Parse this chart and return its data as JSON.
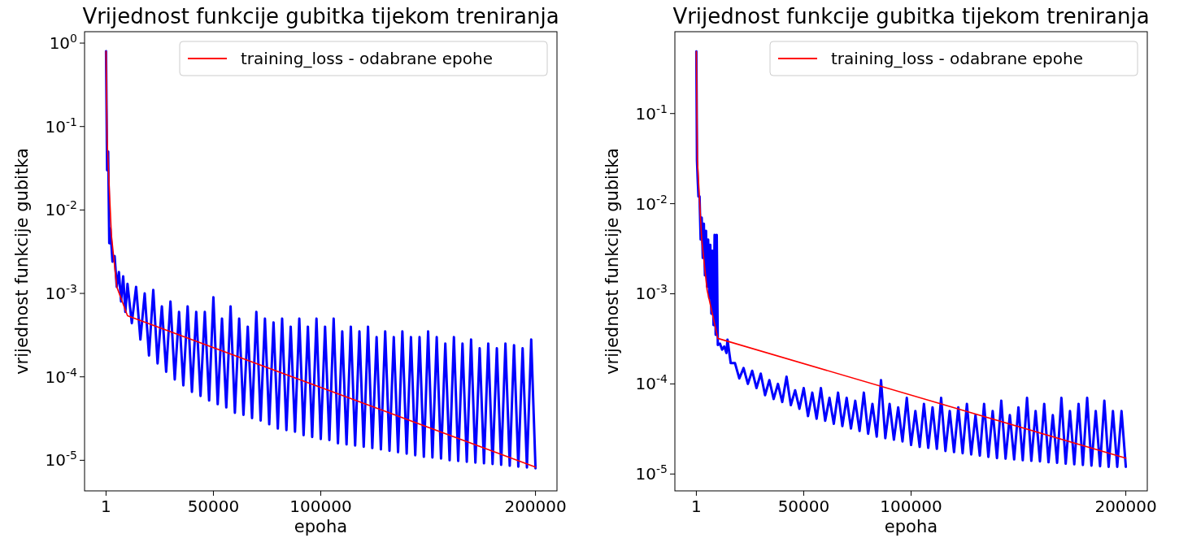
{
  "chart_data": [
    {
      "type": "line",
      "title": "Vrijednost funkcije gubitka tijekom treniranja",
      "xlabel": "epoha",
      "ylabel": "vrijednost funkcije gubitka",
      "log": "y",
      "legend": "top right",
      "xlim": [
        -9999,
        209999
      ],
      "xticks": [
        1,
        50000,
        100000,
        200000
      ],
      "ylim": [
        4.3e-06,
        1.37
      ],
      "yticks": [
        {
          "value": 1,
          "label": "10$^{0}$"
        },
        {
          "value": 0.1,
          "label": "10$^{-1}$"
        },
        {
          "value": 0.01,
          "label": "10$^{-2}$"
        },
        {
          "value": 0.001,
          "label": "10$^{-3}$"
        },
        {
          "value": 0.0001,
          "label": "10$^{-4}$"
        },
        {
          "value": 1e-05,
          "label": "10$^{-5}$"
        }
      ],
      "series": [
        {
          "color": "#0000ff",
          "x": [
            1,
            500,
            1000,
            1500,
            2000,
            3000,
            4000,
            5000,
            6000,
            7000,
            8000,
            9000,
            10000,
            12000,
            14000,
            16000,
            18000,
            20000,
            22000,
            24000,
            26000,
            28000,
            30000,
            32000,
            34000,
            36000,
            38000,
            40000,
            42000,
            44000,
            46000,
            48000,
            50000,
            52000,
            54000,
            56000,
            58000,
            60000,
            62000,
            64000,
            66000,
            68000,
            70000,
            72000,
            74000,
            76000,
            78000,
            80000,
            82000,
            84000,
            86000,
            88000,
            90000,
            92000,
            94000,
            96000,
            98000,
            100000,
            102000,
            104000,
            106000,
            108000,
            110000,
            112000,
            114000,
            116000,
            118000,
            120000,
            122000,
            124000,
            126000,
            128000,
            130000,
            132000,
            134000,
            136000,
            138000,
            140000,
            142000,
            144000,
            146000,
            148000,
            150000,
            152000,
            154000,
            156000,
            158000,
            160000,
            162000,
            164000,
            166000,
            168000,
            170000,
            172000,
            174000,
            176000,
            178000,
            180000,
            182000,
            184000,
            186000,
            188000,
            190000,
            192000,
            194000,
            196000,
            198000,
            200000
          ],
          "values": [
            0.8,
            0.03,
            0.05,
            0.004,
            0.006,
            0.0024,
            0.0028,
            0.0012,
            0.0018,
            0.0008,
            0.0016,
            0.0006,
            0.0013,
            0.00044,
            0.0012,
            0.00028,
            0.001,
            0.00018,
            0.0011,
            0.000145,
            0.0007,
            0.000115,
            0.0008,
            9.3e-05,
            0.0006,
            7.9e-05,
            0.0007,
            6.6e-05,
            0.0006,
            5.9e-05,
            0.0006,
            5.2e-05,
            0.0009,
            4.7e-05,
            0.0005,
            4.3e-05,
            0.0007,
            3.7e-05,
            0.0005,
            3.5e-05,
            0.0004,
            3.2e-05,
            0.0006,
            3e-05,
            0.0005,
            2.7e-05,
            0.00045,
            2.4e-05,
            0.0005,
            2.3e-05,
            0.0004,
            2.2e-05,
            0.0005,
            2e-05,
            0.0004,
            1.9e-05,
            0.0005,
            1.8e-05,
            0.0004,
            1.75e-05,
            0.0005,
            1.6e-05,
            0.00035,
            1.55e-05,
            0.0004,
            1.5e-05,
            0.00035,
            1.45e-05,
            0.0004,
            1.4e-05,
            0.0003,
            1.35e-05,
            0.00035,
            1.3e-05,
            0.0003,
            1.25e-05,
            0.00035,
            1.2e-05,
            0.0003,
            1.15e-05,
            0.0003,
            1.1e-05,
            0.00035,
            1.08e-05,
            0.0003,
            1.05e-05,
            0.00025,
            1e-05,
            0.0003,
            9.8e-06,
            0.00025,
            9.6e-06,
            0.00028,
            9.4e-06,
            0.00022,
            9.2e-06,
            0.00025,
            9e-06,
            0.00022,
            8.8e-06,
            0.00025,
            8.6e-06,
            0.00024,
            8.4e-06,
            0.00022,
            8.2e-06,
            0.00028,
            8e-06
          ]
        },
        {
          "name": "training_loss - odabrane epohe",
          "color": "#ff0000",
          "x": [
            1,
            500,
            2500,
            5000,
            10000,
            200000
          ],
          "values": [
            0.8,
            0.07,
            0.005,
            0.0012,
            0.00054,
            8.3e-06
          ]
        }
      ]
    },
    {
      "type": "line",
      "title": "Vrijednost funkcije gubitka tijekom treniranja",
      "xlabel": "epoha",
      "ylabel": "vrijednost funkcije gubitka",
      "log": "y",
      "legend": "top right",
      "xlim": [
        -9999,
        209999
      ],
      "xticks": [
        1,
        50000,
        100000,
        200000
      ],
      "ylim": [
        6.5e-06,
        0.81
      ],
      "yticks": [
        {
          "value": 0.1,
          "label": "10$^{-1}$"
        },
        {
          "value": 0.01,
          "label": "10$^{-2}$"
        },
        {
          "value": 0.001,
          "label": "10$^{-3}$"
        },
        {
          "value": 0.0001,
          "label": "10$^{-4}$"
        },
        {
          "value": 1e-05,
          "label": "10$^{-5}$"
        }
      ],
      "series": [
        {
          "color": "#0000ff",
          "x": [
            1,
            300,
            700,
            1000,
            1500,
            2000,
            2500,
            3000,
            3500,
            4000,
            4500,
            5000,
            5500,
            6000,
            6500,
            7000,
            7500,
            8000,
            8500,
            9000,
            9500,
            10000,
            11000,
            12000,
            13000,
            14000,
            14500,
            16000,
            18000,
            20000,
            22000,
            24000,
            26000,
            28000,
            30000,
            32000,
            34000,
            36000,
            38000,
            40000,
            42000,
            44000,
            46000,
            48000,
            50000,
            52000,
            54000,
            56000,
            58000,
            60000,
            62000,
            64000,
            66000,
            68000,
            70000,
            72000,
            74000,
            76000,
            78000,
            80000,
            82000,
            84000,
            86000,
            88000,
            90000,
            92000,
            94000,
            96000,
            98000,
            100000,
            102000,
            104000,
            106000,
            108000,
            110000,
            112000,
            114000,
            116000,
            118000,
            120000,
            122000,
            124000,
            126000,
            128000,
            130000,
            132000,
            134000,
            136000,
            138000,
            140000,
            142000,
            144000,
            146000,
            148000,
            150000,
            152000,
            154000,
            156000,
            158000,
            160000,
            162000,
            164000,
            166000,
            168000,
            170000,
            172000,
            174000,
            176000,
            178000,
            180000,
            182000,
            184000,
            186000,
            188000,
            190000,
            192000,
            194000,
            196000,
            198000,
            200000
          ],
          "values": [
            0.49,
            0.03,
            0.017,
            0.012,
            0.012,
            0.004,
            0.007,
            0.0025,
            0.006,
            0.0016,
            0.005,
            0.0012,
            0.004,
            0.0009,
            0.0035,
            0.0006,
            0.003,
            0.00045,
            0.0045,
            0.00035,
            0.0045,
            0.00027,
            0.00028,
            0.00024,
            0.00026,
            0.00022,
            0.00031,
            0.00017,
            0.00017,
            0.000115,
            0.00015,
            0.0001,
            0.00014,
            9e-05,
            0.00013,
            7.5e-05,
            0.00011,
            6.8e-05,
            0.0001,
            6.3e-05,
            0.00012,
            5.8e-05,
            8.5e-05,
            5.3e-05,
            9e-05,
            4.4e-05,
            8e-05,
            4.1e-05,
            9e-05,
            3.9e-05,
            7e-05,
            3.6e-05,
            8e-05,
            3.4e-05,
            7e-05,
            3.2e-05,
            6.5e-05,
            3e-05,
            8e-05,
            2.8e-05,
            6e-05,
            2.6e-05,
            0.00011,
            2.5e-05,
            6e-05,
            2.4e-05,
            5.5e-05,
            2.3e-05,
            7e-05,
            2.1e-05,
            5e-05,
            2e-05,
            6e-05,
            1.95e-05,
            5.5e-05,
            1.9e-05,
            7e-05,
            1.8e-05,
            5e-05,
            1.75e-05,
            5.5e-05,
            1.7e-05,
            6e-05,
            1.65e-05,
            4.5e-05,
            1.6e-05,
            6e-05,
            1.55e-05,
            5e-05,
            1.5e-05,
            6.5e-05,
            1.48e-05,
            4.5e-05,
            1.45e-05,
            5.5e-05,
            1.42e-05,
            7e-05,
            1.4e-05,
            5e-05,
            1.38e-05,
            6e-05,
            1.35e-05,
            4.5e-05,
            1.33e-05,
            7e-05,
            1.3e-05,
            5e-05,
            1.28e-05,
            6e-05,
            1.26e-05,
            7e-05,
            1.24e-05,
            5e-05,
            1.22e-05,
            6.5e-05,
            1.2e-05,
            5e-05,
            1.2e-05,
            5e-05,
            1.2e-05
          ]
        },
        {
          "name": "training_loss - odabrane epohe",
          "color": "#ff0000",
          "x": [
            1,
            500,
            2500,
            5000,
            10000,
            200000
          ],
          "values": [
            0.49,
            0.03,
            0.004,
            0.0011,
            0.00032,
            1.5e-05
          ]
        }
      ]
    }
  ]
}
